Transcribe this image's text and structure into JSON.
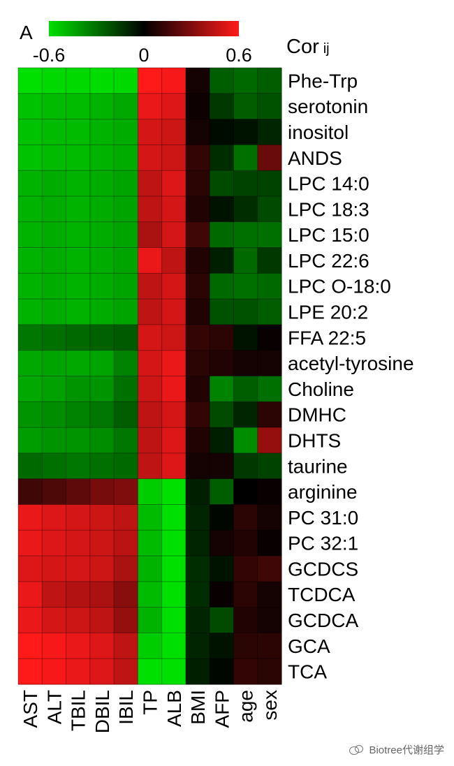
{
  "chart_data": {
    "type": "heatmap",
    "panel_label": "A",
    "legend": {
      "title": "Cor",
      "title_subscript": "ij",
      "ticks": [
        "-0.6",
        "0",
        "0.6"
      ],
      "tick_values": [
        -0.6,
        0,
        0.6
      ],
      "colors": {
        "low": "#00e000",
        "mid": "#000000",
        "high": "#ff1a1a"
      }
    },
    "range": [
      -0.6,
      0.6
    ],
    "columns": [
      "AST",
      "ALT",
      "TBIL",
      "DBIL",
      "IBIL",
      "TP",
      "ALB",
      "BMI",
      "AFP",
      "age",
      "sex"
    ],
    "rows": [
      "Phe-Trp",
      "serotonin",
      "inositol",
      "ANDS",
      "LPC 14:0",
      "LPC 18:3",
      "LPC 15:0",
      "LPC 22:6",
      "LPC O-18:0",
      "LPE 20:2",
      "FFA 22:5",
      "acetyl-tyrosine",
      "Choline",
      "DMHC",
      "DHTS",
      "taurine",
      "arginine",
      "PC 31:0",
      "PC 32:1",
      "GCDCS",
      "TCDCA",
      "GCDCA",
      "GCA",
      "TCA"
    ],
    "values": [
      [
        -0.6,
        -0.58,
        -0.58,
        -0.59,
        -0.58,
        0.6,
        0.58,
        0.05,
        -0.25,
        -0.28,
        -0.25
      ],
      [
        -0.52,
        -0.5,
        -0.5,
        -0.48,
        -0.45,
        0.55,
        0.52,
        0.03,
        -0.15,
        -0.25,
        -0.22
      ],
      [
        -0.52,
        -0.5,
        -0.5,
        -0.48,
        -0.46,
        0.5,
        0.48,
        0.05,
        -0.03,
        -0.05,
        -0.1
      ],
      [
        -0.52,
        -0.5,
        -0.5,
        -0.48,
        -0.46,
        0.5,
        0.48,
        0.12,
        -0.12,
        -0.3,
        0.25
      ],
      [
        -0.48,
        -0.46,
        -0.48,
        -0.46,
        -0.44,
        0.45,
        0.52,
        0.1,
        -0.2,
        -0.18,
        -0.18
      ],
      [
        -0.48,
        -0.46,
        -0.48,
        -0.46,
        -0.44,
        0.45,
        0.5,
        0.08,
        -0.05,
        -0.12,
        -0.2
      ],
      [
        -0.48,
        -0.46,
        -0.48,
        -0.46,
        -0.44,
        0.4,
        0.5,
        0.15,
        -0.28,
        -0.3,
        -0.3
      ],
      [
        -0.48,
        -0.46,
        -0.48,
        -0.46,
        -0.44,
        0.55,
        0.45,
        0.08,
        -0.08,
        -0.28,
        -0.15
      ],
      [
        -0.48,
        -0.46,
        -0.48,
        -0.46,
        -0.44,
        0.45,
        0.5,
        0.1,
        -0.28,
        -0.3,
        -0.28
      ],
      [
        -0.48,
        -0.46,
        -0.48,
        -0.46,
        -0.44,
        0.45,
        0.5,
        0.08,
        -0.22,
        -0.22,
        -0.25
      ],
      [
        -0.32,
        -0.3,
        -0.28,
        -0.26,
        -0.24,
        0.5,
        0.48,
        0.12,
        0.1,
        -0.05,
        0.02
      ],
      [
        -0.45,
        -0.44,
        -0.45,
        -0.44,
        -0.35,
        0.5,
        0.55,
        0.1,
        0.08,
        0.05,
        0.05
      ],
      [
        -0.45,
        -0.43,
        -0.4,
        -0.4,
        -0.3,
        0.48,
        0.55,
        0.08,
        -0.35,
        -0.25,
        -0.3
      ],
      [
        -0.4,
        -0.38,
        -0.35,
        -0.32,
        -0.25,
        0.45,
        0.5,
        0.12,
        -0.2,
        -0.1,
        0.1
      ],
      [
        -0.42,
        -0.4,
        -0.4,
        -0.38,
        -0.32,
        0.45,
        0.52,
        0.08,
        -0.08,
        -0.38,
        0.35
      ],
      [
        -0.28,
        -0.3,
        -0.32,
        -0.3,
        -0.28,
        0.45,
        0.52,
        0.05,
        0.05,
        -0.15,
        -0.18
      ],
      [
        0.15,
        0.18,
        0.22,
        0.28,
        0.3,
        -0.55,
        -0.6,
        -0.08,
        -0.25,
        0.0,
        0.02
      ],
      [
        0.55,
        0.52,
        0.5,
        0.48,
        0.45,
        -0.5,
        -0.6,
        -0.1,
        -0.02,
        0.1,
        0.05
      ],
      [
        0.55,
        0.52,
        0.5,
        0.48,
        0.44,
        -0.5,
        -0.6,
        -0.1,
        0.05,
        0.08,
        0.02
      ],
      [
        0.52,
        0.5,
        0.5,
        0.48,
        0.4,
        -0.48,
        -0.6,
        -0.12,
        -0.05,
        0.12,
        0.15
      ],
      [
        0.55,
        0.45,
        0.42,
        0.4,
        0.32,
        -0.5,
        -0.6,
        -0.12,
        0.02,
        0.1,
        0.05
      ],
      [
        0.55,
        0.5,
        0.48,
        0.45,
        0.35,
        -0.48,
        -0.6,
        -0.1,
        -0.2,
        0.08,
        0.05
      ],
      [
        0.6,
        0.58,
        0.55,
        0.52,
        0.45,
        -0.55,
        -0.6,
        -0.1,
        -0.05,
        0.1,
        0.1
      ],
      [
        0.6,
        0.58,
        0.55,
        0.52,
        0.45,
        -0.6,
        -0.6,
        -0.08,
        -0.02,
        0.12,
        0.1
      ]
    ]
  },
  "watermark": {
    "text": "Biotree代谢组学",
    "icon": "wechat-icon"
  }
}
